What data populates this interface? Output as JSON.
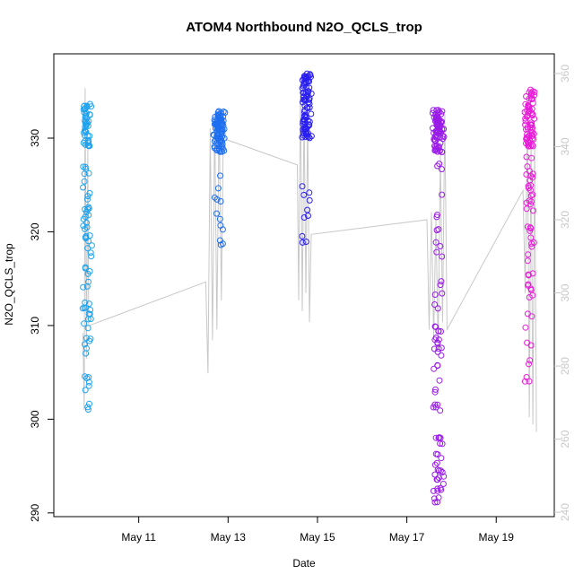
{
  "chart_data": {
    "type": "scatter",
    "title": "ATOM4 Northbound N2O_QCLS_trop",
    "xlabel": "Date",
    "ylabel": "N2O_QCLS_trop",
    "x_ticks": [
      {
        "day": 11,
        "label": "May 11"
      },
      {
        "day": 13,
        "label": "May 13"
      },
      {
        "day": 15,
        "label": "May 15"
      },
      {
        "day": 17,
        "label": "May 17"
      },
      {
        "day": 19,
        "label": "May 19"
      }
    ],
    "xlim": [
      9.1,
      20.3
    ],
    "ylim_left": [
      289.6,
      339.0
    ],
    "yticks_left": [
      290,
      300,
      310,
      320,
      330
    ],
    "ylim_right": [
      238.8,
      365.4
    ],
    "yticks_right": [
      240,
      260,
      280,
      300,
      320,
      340,
      360
    ],
    "colors": {
      "flight1": "#1fa2ee",
      "flight2": "#1e6ff0",
      "flight3": "#2a1ff0",
      "flight4": "#9a1ce8",
      "flight5": "#e81cd8",
      "altitude_line": "#c8c8c8"
    },
    "flights": [
      {
        "name": "flight1",
        "color_key": "flight1",
        "center_day": 9.85,
        "spread": 0.12,
        "seed": 11,
        "clusters": [
          {
            "lo": 329.0,
            "hi": 333.8,
            "n": 45
          },
          {
            "lo": 312.0,
            "hi": 327.0,
            "n": 40
          },
          {
            "lo": 301.0,
            "hi": 312.0,
            "n": 25
          }
        ]
      },
      {
        "name": "flight2",
        "color_key": "flight2",
        "center_day": 12.8,
        "spread": 0.14,
        "seed": 23,
        "clusters": [
          {
            "lo": 328.5,
            "hi": 333.0,
            "n": 90
          },
          {
            "lo": 318.5,
            "hi": 326.0,
            "n": 12
          }
        ]
      },
      {
        "name": "flight3",
        "color_key": "flight3",
        "center_day": 14.75,
        "spread": 0.13,
        "seed": 37,
        "clusters": [
          {
            "lo": 330.0,
            "hi": 337.0,
            "n": 90
          },
          {
            "lo": 318.0,
            "hi": 325.0,
            "n": 10
          }
        ]
      },
      {
        "name": "flight4",
        "color_key": "flight4",
        "center_day": 17.7,
        "spread": 0.14,
        "seed": 51,
        "clusters": [
          {
            "lo": 328.5,
            "hi": 333.0,
            "n": 80
          },
          {
            "lo": 314.0,
            "hi": 328.0,
            "n": 14
          },
          {
            "lo": 300.0,
            "hi": 313.5,
            "n": 30
          },
          {
            "lo": 291.0,
            "hi": 298.5,
            "n": 30
          }
        ]
      },
      {
        "name": "flight5",
        "color_key": "flight5",
        "center_day": 19.75,
        "spread": 0.12,
        "seed": 67,
        "clusters": [
          {
            "lo": 329.0,
            "hi": 335.3,
            "n": 70
          },
          {
            "lo": 313.0,
            "hi": 328.0,
            "n": 40
          },
          {
            "lo": 302.0,
            "hi": 312.0,
            "n": 10
          }
        ]
      }
    ],
    "altitude_path": [
      {
        "day": 9.75,
        "right": 289
      },
      {
        "day": 9.78,
        "right": 268
      },
      {
        "day": 9.8,
        "right": 356
      },
      {
        "day": 9.83,
        "right": 282
      },
      {
        "day": 9.86,
        "right": 340
      },
      {
        "day": 9.88,
        "right": 291
      },
      {
        "day": 12.5,
        "right": 303
      },
      {
        "day": 12.55,
        "right": 278
      },
      {
        "day": 12.6,
        "right": 345
      },
      {
        "day": 12.65,
        "right": 287
      },
      {
        "day": 12.7,
        "right": 348
      },
      {
        "day": 12.75,
        "right": 290
      },
      {
        "day": 12.8,
        "right": 349
      },
      {
        "day": 12.85,
        "right": 298
      },
      {
        "day": 12.9,
        "right": 350
      },
      {
        "day": 12.95,
        "right": 342
      },
      {
        "day": 14.55,
        "right": 335
      },
      {
        "day": 14.58,
        "right": 298
      },
      {
        "day": 14.62,
        "right": 357
      },
      {
        "day": 14.66,
        "right": 295
      },
      {
        "day": 14.7,
        "right": 350
      },
      {
        "day": 14.74,
        "right": 300
      },
      {
        "day": 14.78,
        "right": 348
      },
      {
        "day": 14.82,
        "right": 292
      },
      {
        "day": 14.86,
        "right": 316
      },
      {
        "day": 17.45,
        "right": 320
      },
      {
        "day": 17.5,
        "right": 290
      },
      {
        "day": 17.55,
        "right": 322
      },
      {
        "day": 17.6,
        "right": 288
      },
      {
        "day": 17.65,
        "right": 320
      },
      {
        "day": 17.7,
        "right": 285
      },
      {
        "day": 17.75,
        "right": 338
      },
      {
        "day": 17.8,
        "right": 292
      },
      {
        "day": 17.85,
        "right": 349
      },
      {
        "day": 17.9,
        "right": 290
      },
      {
        "day": 19.6,
        "right": 328
      },
      {
        "day": 19.65,
        "right": 300
      },
      {
        "day": 19.7,
        "right": 350
      },
      {
        "day": 19.74,
        "right": 266
      },
      {
        "day": 19.78,
        "right": 345
      },
      {
        "day": 19.82,
        "right": 264
      },
      {
        "day": 19.86,
        "right": 340
      },
      {
        "day": 19.9,
        "right": 262
      }
    ]
  }
}
